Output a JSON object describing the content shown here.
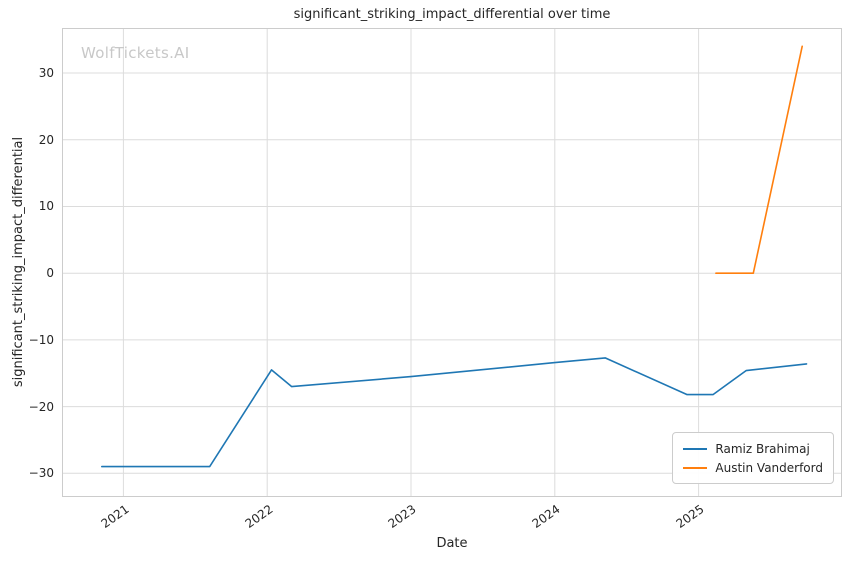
{
  "chart_data": {
    "type": "line",
    "title": "significant_striking_impact_differential over time",
    "xlabel": "Date",
    "ylabel": "significant_striking_impact_differential",
    "watermark": "WolfTickets.AI",
    "grid": true,
    "legend_position": "lower right",
    "x_ticks": [
      2021,
      2022,
      2023,
      2024,
      2025
    ],
    "y_ticks": [
      -30,
      -20,
      -10,
      0,
      10,
      20,
      30
    ],
    "x_domain": [
      2020.58,
      2025.99
    ],
    "y_domain": [
      -33.4,
      36.6
    ],
    "colors": {
      "grid": "#dcdcdc",
      "spine": "#cccccc",
      "text": "#262626",
      "watermark": "#c8c8c8",
      "background": "#ffffff"
    },
    "series": [
      {
        "name": "Ramiz Brahimaj",
        "color": "#1f77b4",
        "points": [
          [
            2020.85,
            -29
          ],
          [
            2021.6,
            -29
          ],
          [
            2022.03,
            -14.5
          ],
          [
            2022.17,
            -17
          ],
          [
            2023.0,
            -15.5
          ],
          [
            2024.0,
            -13.4
          ],
          [
            2024.35,
            -12.7
          ],
          [
            2024.92,
            -18.2
          ],
          [
            2025.1,
            -18.2
          ],
          [
            2025.33,
            -14.6
          ],
          [
            2025.75,
            -13.6
          ]
        ]
      },
      {
        "name": "Austin Vanderford",
        "color": "#ff7f0e",
        "points": [
          [
            2025.12,
            0
          ],
          [
            2025.38,
            0
          ],
          [
            2025.72,
            34
          ]
        ]
      }
    ]
  }
}
